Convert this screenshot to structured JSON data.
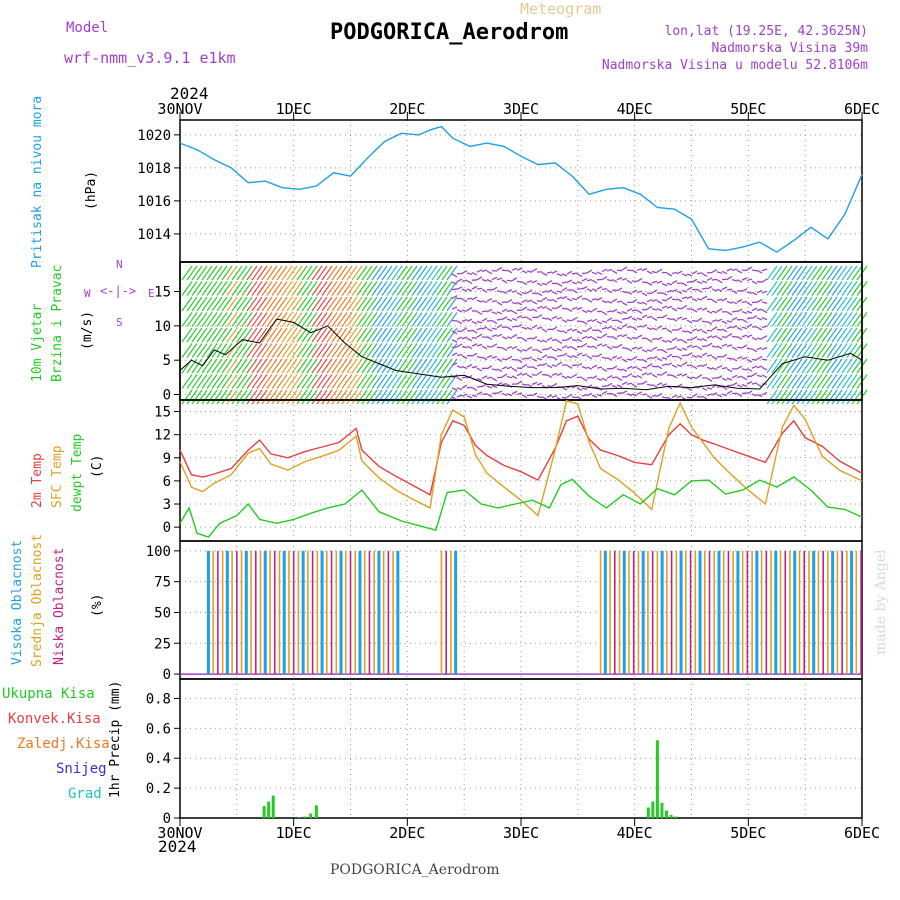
{
  "header": {
    "model_label": "Model",
    "model_name": "wrf-nmm_v3.9.1 e1km",
    "meteogram_label": "Meteogram",
    "station": "PODGORICA_Aerodrom",
    "lonlat": "lon,lat (19.25E, 42.3625N)",
    "elevation": "Nadmorska Visina 39m",
    "model_elevation": "Nadmorska Visina u modelu 52.8106m",
    "year": "2024",
    "credit": "made by Angel",
    "footer_station": "PODGORICA_Aerodrom"
  },
  "colors": {
    "pressure": "#1ea0e6",
    "wind": "#22cc22",
    "temp": "#e84040",
    "sfc_temp": "#e0a020",
    "dewpt": "#22cc22",
    "high_cloud": "#1ea0e6",
    "mid_cloud": "#e0a020",
    "low_cloud": "#c0208a",
    "total_precip": "#22cc22",
    "conv_precip": "#e84040",
    "frz_precip": "#f07820",
    "snow": "#3030e0",
    "hail": "#20c0c0",
    "purple": "#a040d0"
  },
  "chart_data": [
    {
      "type": "line",
      "title": "Pritisak na nivou mora",
      "ylabel": "(hPa)",
      "x_ticks": [
        "30NOV",
        "1DEC",
        "2DEC",
        "3DEC",
        "4DEC",
        "5DEC",
        "6DEC"
      ],
      "x_range_days": [
        0,
        6
      ],
      "yticks": [
        1014,
        1016,
        1018,
        1020
      ],
      "ylim": [
        1012.3,
        1020.9
      ],
      "grid": true,
      "series": [
        {
          "name": "Pritisak na nivou mora",
          "x": [
            0,
            0.15,
            0.3,
            0.45,
            0.6,
            0.75,
            0.9,
            1.05,
            1.2,
            1.35,
            1.5,
            1.65,
            1.8,
            1.95,
            2.1,
            2.2,
            2.3,
            2.4,
            2.55,
            2.7,
            2.85,
            3.0,
            3.15,
            3.3,
            3.45,
            3.6,
            3.75,
            3.9,
            4.05,
            4.2,
            4.35,
            4.5,
            4.65,
            4.8,
            4.95,
            5.1,
            5.25,
            5.4,
            5.55,
            5.7,
            5.85,
            6.0
          ],
          "values": [
            1019.5,
            1019.1,
            1018.5,
            1018.0,
            1017.1,
            1017.2,
            1016.8,
            1016.7,
            1016.9,
            1017.7,
            1017.5,
            1018.6,
            1019.6,
            1020.1,
            1020.0,
            1020.3,
            1020.5,
            1019.8,
            1019.3,
            1019.5,
            1019.3,
            1018.7,
            1018.2,
            1018.3,
            1017.5,
            1016.4,
            1016.7,
            1016.8,
            1016.4,
            1015.6,
            1015.5,
            1014.9,
            1013.1,
            1013.0,
            1013.2,
            1013.5,
            1012.9,
            1013.6,
            1014.4,
            1013.7,
            1015.2,
            1017.6
          ]
        }
      ]
    },
    {
      "type": "line",
      "title": "10m Vjetar Brzina i Pravac",
      "ylabel": "(m/s)",
      "compass": [
        "N",
        "E",
        "W",
        "S"
      ],
      "yticks": [
        0,
        5,
        10,
        15
      ],
      "ylim": [
        -0.8,
        19.3
      ],
      "grid": true,
      "series": [
        {
          "name": "Brzina",
          "x": [
            0,
            0.1,
            0.2,
            0.3,
            0.4,
            0.55,
            0.7,
            0.85,
            1.0,
            1.15,
            1.3,
            1.45,
            1.6,
            1.75,
            1.9,
            2.1,
            2.3,
            2.5,
            2.7,
            2.9,
            3.1,
            3.3,
            3.5,
            3.7,
            3.9,
            4.1,
            4.3,
            4.5,
            4.7,
            4.9,
            5.1,
            5.3,
            5.5,
            5.7,
            5.9,
            6.0
          ],
          "values": [
            3.5,
            5.0,
            4.2,
            6.5,
            5.8,
            8.0,
            7.5,
            11.0,
            10.5,
            9.0,
            10.0,
            7.5,
            5.5,
            4.5,
            3.5,
            3.0,
            2.5,
            2.8,
            1.5,
            1.2,
            1.0,
            1.0,
            1.3,
            0.8,
            0.9,
            0.7,
            1.2,
            1.0,
            1.4,
            0.9,
            0.8,
            4.5,
            5.5,
            5.0,
            6.0,
            5.0
          ]
        }
      ]
    },
    {
      "type": "line",
      "ylabel": "(C)",
      "yticks": [
        0,
        3,
        6,
        9,
        12,
        15
      ],
      "ylim": [
        -1.8,
        16.5
      ],
      "grid": true,
      "series": [
        {
          "name": "2m Temp",
          "x": [
            0,
            0.1,
            0.2,
            0.3,
            0.45,
            0.6,
            0.7,
            0.8,
            0.95,
            1.1,
            1.25,
            1.4,
            1.55,
            1.6,
            1.75,
            1.9,
            2.05,
            2.2,
            2.3,
            2.4,
            2.5,
            2.6,
            2.7,
            2.85,
            3.0,
            3.15,
            3.3,
            3.4,
            3.5,
            3.6,
            3.7,
            3.85,
            4.0,
            4.15,
            4.3,
            4.4,
            4.5,
            4.6,
            4.7,
            4.85,
            5.0,
            5.15,
            5.3,
            5.4,
            5.5,
            5.65,
            5.8,
            6.0
          ],
          "values": [
            10.0,
            6.8,
            6.5,
            6.9,
            7.6,
            10.0,
            11.3,
            9.5,
            9.0,
            9.8,
            10.4,
            11.0,
            12.8,
            10.0,
            7.9,
            6.6,
            5.4,
            4.2,
            11.0,
            13.8,
            13.2,
            10.6,
            9.3,
            8.0,
            7.2,
            6.1,
            10.2,
            13.8,
            14.4,
            11.4,
            10.0,
            9.3,
            8.4,
            8.1,
            12.0,
            13.4,
            12.0,
            11.3,
            10.8,
            10.0,
            9.2,
            8.4,
            12.2,
            13.8,
            11.6,
            10.5,
            8.6,
            7.0
          ]
        },
        {
          "name": "SFC Temp",
          "x": [
            0,
            0.1,
            0.2,
            0.3,
            0.45,
            0.6,
            0.7,
            0.8,
            0.95,
            1.1,
            1.25,
            1.4,
            1.55,
            1.6,
            1.75,
            1.9,
            2.05,
            2.2,
            2.3,
            2.4,
            2.5,
            2.6,
            2.7,
            2.85,
            3.0,
            3.15,
            3.3,
            3.4,
            3.5,
            3.6,
            3.7,
            3.85,
            4.0,
            4.15,
            4.3,
            4.4,
            4.5,
            4.6,
            4.7,
            4.85,
            5.0,
            5.15,
            5.3,
            5.4,
            5.5,
            5.65,
            5.8,
            6.0
          ],
          "values": [
            8.5,
            5.2,
            4.6,
            5.7,
            6.8,
            9.6,
            10.2,
            8.2,
            7.4,
            8.5,
            9.2,
            10.0,
            11.8,
            8.6,
            6.4,
            4.8,
            3.6,
            2.5,
            12.0,
            15.2,
            14.3,
            9.4,
            7.0,
            5.2,
            3.5,
            1.5,
            10.0,
            16.4,
            16.0,
            11.0,
            7.6,
            6.2,
            4.4,
            2.3,
            12.8,
            16.1,
            13.0,
            11.0,
            9.0,
            6.8,
            4.8,
            3.0,
            13.0,
            15.8,
            14.0,
            9.2,
            7.4,
            6.0
          ]
        },
        {
          "name": "dewpt Temp",
          "x": [
            0,
            0.08,
            0.15,
            0.25,
            0.35,
            0.5,
            0.6,
            0.7,
            0.85,
            1.0,
            1.15,
            1.3,
            1.45,
            1.6,
            1.75,
            1.95,
            2.1,
            2.25,
            2.35,
            2.5,
            2.65,
            2.8,
            2.95,
            3.1,
            3.25,
            3.35,
            3.45,
            3.6,
            3.75,
            3.9,
            4.05,
            4.2,
            4.35,
            4.5,
            4.65,
            4.8,
            4.95,
            5.1,
            5.25,
            5.4,
            5.55,
            5.7,
            5.85,
            6.0
          ],
          "values": [
            0.5,
            2.5,
            -0.8,
            -1.3,
            0.5,
            1.5,
            3.0,
            1.0,
            0.5,
            1.0,
            1.8,
            2.5,
            3.0,
            4.8,
            2.0,
            0.8,
            0.2,
            -0.4,
            4.5,
            4.8,
            3.0,
            2.5,
            3.0,
            3.5,
            2.5,
            5.5,
            6.2,
            4.0,
            2.5,
            4.2,
            3.0,
            5.0,
            4.2,
            6.0,
            6.1,
            4.3,
            4.8,
            6.1,
            5.2,
            6.5,
            4.8,
            2.6,
            2.3,
            1.3
          ]
        }
      ]
    },
    {
      "type": "bar",
      "ylabel": "(%)",
      "yticks": [
        0,
        25,
        50,
        75,
        100
      ],
      "ylim": [
        -4,
        108
      ],
      "grid": true,
      "series": [
        {
          "name": "Visoka Oblacnost"
        },
        {
          "name": "Srednja Oblacnost"
        },
        {
          "name": "Niska Oblacnost"
        }
      ]
    },
    {
      "type": "bar",
      "ylabel": "1hr Precip (mm)",
      "yticks": [
        0,
        0.2,
        0.4,
        0.6,
        0.8
      ],
      "ylim": [
        0,
        0.93
      ],
      "grid": true,
      "series": [
        {
          "name": "Ukupna Kisa",
          "x": [
            0.74,
            0.78,
            0.82,
            1.05,
            1.1,
            1.15,
            1.2,
            4.12,
            4.16,
            4.2,
            4.24,
            4.28,
            4.32,
            4.36
          ],
          "values": [
            0.08,
            0.11,
            0.15,
            0.005,
            0.01,
            0.03,
            0.085,
            0.07,
            0.11,
            0.52,
            0.1,
            0.05,
            0.02,
            0.01
          ]
        },
        {
          "name": "Konvek.Kisa"
        },
        {
          "name": "Zaledj.Kisa"
        },
        {
          "name": "Snijeg"
        },
        {
          "name": "Grad"
        }
      ]
    }
  ]
}
